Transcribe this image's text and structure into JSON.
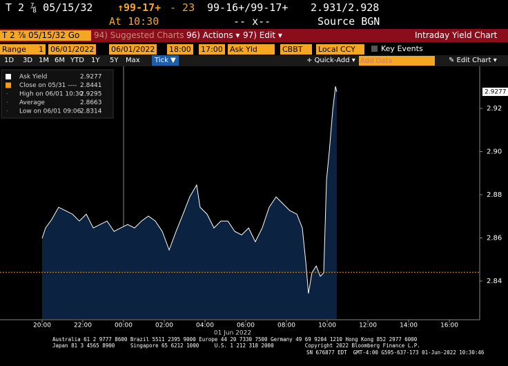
{
  "header": {
    "ticker": "T 2 ⅞ 05/15/32",
    "price": "↑99-17+",
    "change": "- 23",
    "bid_ask": "99-16+/99-17+",
    "yields": "2.931/2.928",
    "time": "At 10:30",
    "size": "-- x--",
    "source": "Source BGN"
  },
  "toolbar": {
    "security": "T 2 ⅞ 05/15/32 Go",
    "suggested": "94) Suggested Charts",
    "actions": "96) Actions ▾",
    "edit": "97) Edit ▾",
    "title": "Intraday Yield Chart"
  },
  "range_bar": {
    "range": "Range",
    "num": "1",
    "start_date": "06/01/2022",
    "end_date": "06/01/2022",
    "start_time": "18:00",
    "end_time": "17:00",
    "field": "Ask Yld",
    "source": "CBBT",
    "currency": "Local CCY",
    "events": "Key Events"
  },
  "period_bar": {
    "periods": [
      "1D",
      "3D",
      "1M",
      "6M",
      "YTD",
      "1Y",
      "5Y",
      "Max"
    ],
    "tick": "Tick ▼",
    "quick_add": "+ Quick-Add ▾",
    "add_data": "Add Data",
    "edit_chart": "✎ Edit Chart ▾"
  },
  "chart_data": {
    "type": "area",
    "date_label": "01 Jun 2022",
    "legend_items": [
      {
        "label": "Ask Yield",
        "value": 2.9277
      },
      {
        "label": "Close on 05/31 ----",
        "value": 2.8441
      },
      {
        "label": "High on 06/01 10:30",
        "value": 2.9295
      },
      {
        "label": "Average",
        "value": 2.8663
      },
      {
        "label": "Low on 06/01 09:06",
        "value": 2.8314
      }
    ],
    "series": [
      {
        "name": "Ask Yield",
        "color": "#ffffff",
        "fill": "#0b2340",
        "x": [
          20.0,
          20.17,
          20.47,
          20.81,
          21.15,
          21.49,
          21.83,
          22.17,
          22.51,
          22.85,
          23.19,
          23.53,
          23.86,
          24.2,
          24.54,
          24.88,
          25.22,
          25.56,
          25.9,
          26.24,
          26.58,
          26.92,
          27.25,
          27.59,
          27.76,
          28.1,
          28.44,
          28.78,
          29.12,
          29.46,
          29.8,
          30.14,
          30.47,
          30.81,
          31.15,
          31.49,
          31.83,
          32.17,
          32.51,
          32.78,
          32.95,
          33.08,
          33.25,
          33.46,
          33.66,
          33.83,
          33.97,
          34.1,
          34.27,
          34.41,
          34.47
        ],
        "values": [
          2.8598,
          2.8646,
          2.8685,
          2.8742,
          2.8726,
          2.871,
          2.8678,
          2.871,
          2.8646,
          2.8662,
          2.8678,
          2.863,
          2.8646,
          2.8662,
          2.8646,
          2.8678,
          2.8701,
          2.8678,
          2.863,
          2.8544,
          2.863,
          2.871,
          2.879,
          2.8845,
          2.8742,
          2.871,
          2.8646,
          2.8678,
          2.8678,
          2.863,
          2.8614,
          2.8646,
          2.8582,
          2.8646,
          2.8742,
          2.879,
          2.8758,
          2.8726,
          2.871,
          2.8646,
          2.8486,
          2.8342,
          2.8438,
          2.847,
          2.8422,
          2.8438,
          2.887,
          2.8998,
          2.919,
          2.9302,
          2.9277
        ]
      }
    ],
    "close_color": "#f39c12",
    "xlim": [
      17.932,
      41.49
    ],
    "ylim": [
      2.8224,
      2.9392
    ],
    "xticks": [
      {
        "value": 20,
        "label": "20:00"
      },
      {
        "value": 22,
        "label": "22:00"
      },
      {
        "value": 24,
        "label": "00:00"
      },
      {
        "value": 26,
        "label": "02:00"
      },
      {
        "value": 28,
        "label": "04:00"
      },
      {
        "value": 30,
        "label": "06:00"
      },
      {
        "value": 32,
        "label": "08:00"
      },
      {
        "value": 34,
        "label": "10:00"
      },
      {
        "value": 36,
        "label": "12:00"
      },
      {
        "value": 38,
        "label": "14:00"
      },
      {
        "value": 40,
        "label": "16:00"
      }
    ],
    "yticks": [
      2.84,
      2.86,
      2.88,
      {
        "value": 2.9,
        "label": "2.90"
      },
      2.92
    ]
  },
  "footer": {
    "line1": "Australia 61 2 9777 8600 Brazil 5511 2395 9000 Europe 44 20 7330 7500 Germany 49 69 9204 1210 Hong Kong 852 2977 6000",
    "line2": "Japan 81 3 4565 8900     Singapore 65 6212 1000     U.S. 1 212 318 2000          Copyright 2022 Bloomberg Finance L.P.",
    "line3": "SN 676877 EDT  GMT-4:00 G595-637-173 01-Jun-2022 10:30:46"
  }
}
